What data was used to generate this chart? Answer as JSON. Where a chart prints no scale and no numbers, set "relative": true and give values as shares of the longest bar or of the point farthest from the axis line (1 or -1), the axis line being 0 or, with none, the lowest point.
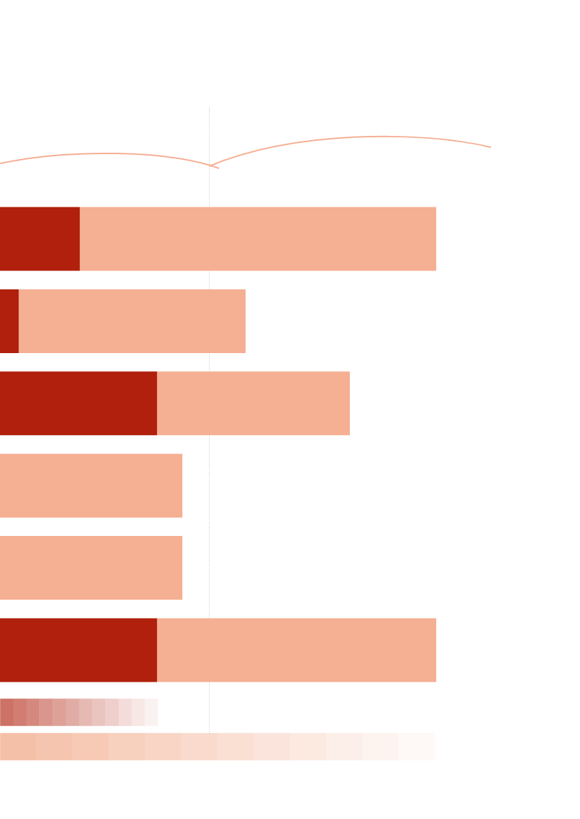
{
  "chart_data": {
    "type": "bar",
    "orientation": "horizontal",
    "stacked": true,
    "relative": true,
    "categories": [
      null,
      null,
      null,
      null,
      null,
      null
    ],
    "series": [
      {
        "color": "#b0200c",
        "values": [
          0.183,
          0.043,
          0.36,
          0,
          0,
          0.36
        ]
      },
      {
        "color": "#f5af93",
        "values": [
          0.817,
          0.52,
          0.442,
          0.418,
          0.418,
          0.64
        ]
      }
    ],
    "ref_lines": [
      {
        "axis": "x",
        "value": 0.48,
        "color": "#999999",
        "line_style": "dotted"
      }
    ]
  }
}
